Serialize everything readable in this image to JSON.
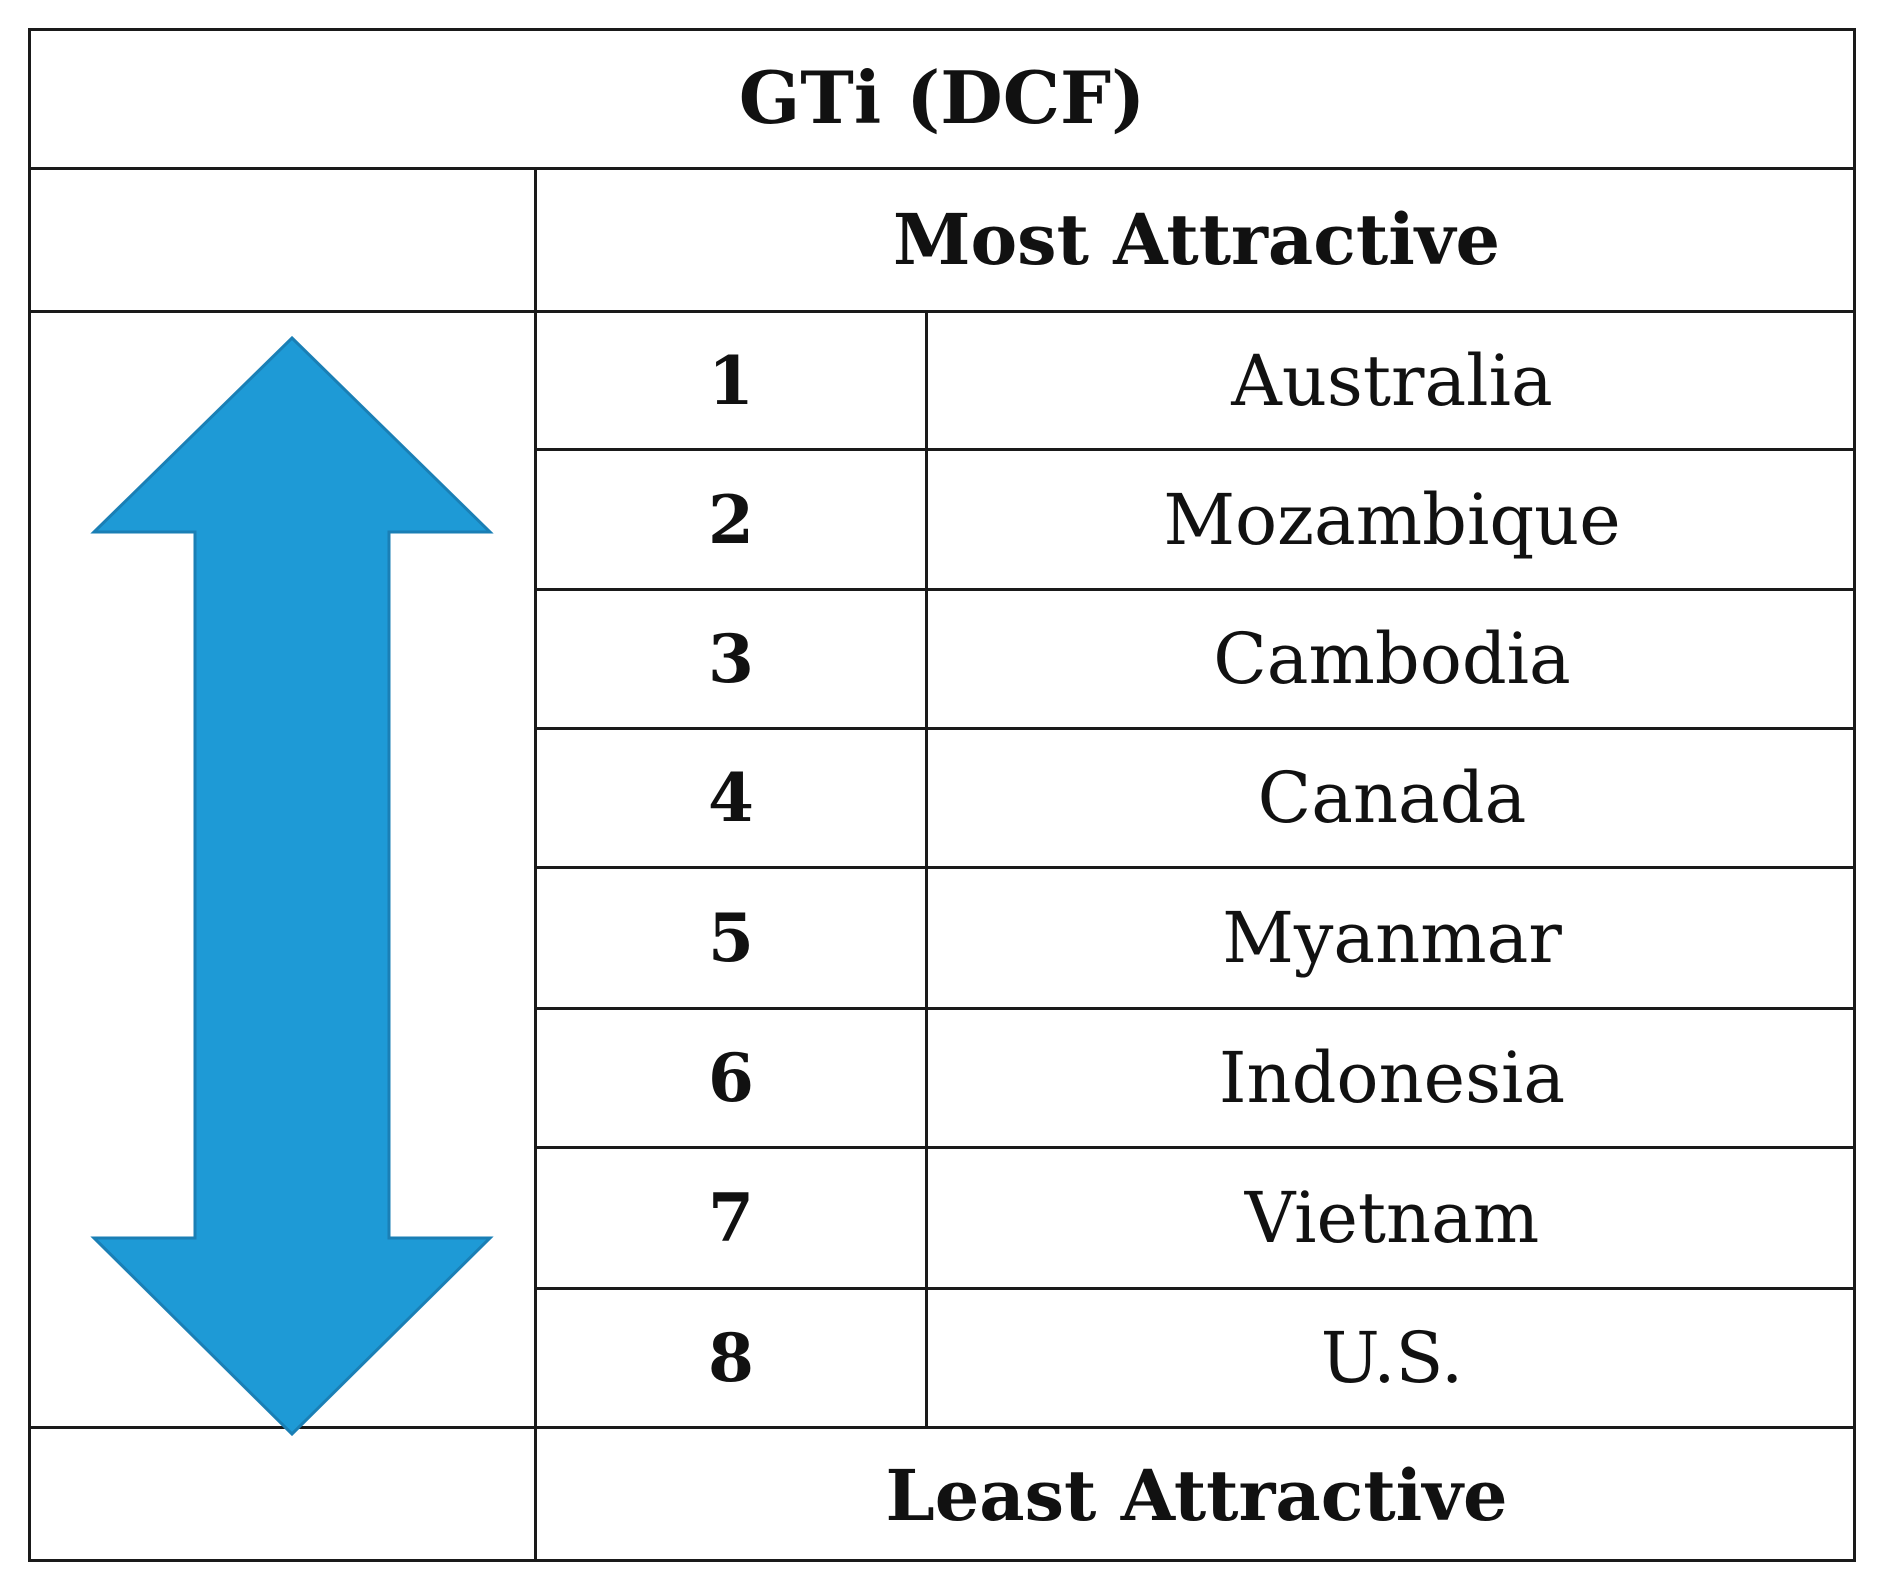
{
  "table": {
    "title": "GTi (DCF)",
    "top_label": "Most Attractive",
    "bottom_label": "Least Attractive",
    "rows": [
      {
        "rank": "1",
        "country": "Australia"
      },
      {
        "rank": "2",
        "country": "Mozambique"
      },
      {
        "rank": "3",
        "country": "Cambodia"
      },
      {
        "rank": "4",
        "country": "Canada"
      },
      {
        "rank": "5",
        "country": "Myanmar"
      },
      {
        "rank": "6",
        "country": "Indonesia"
      },
      {
        "rank": "7",
        "country": "Vietnam"
      },
      {
        "rank": "8",
        "country": "U.S."
      }
    ]
  },
  "arrow": {
    "icon": "double-headed-vertical-arrow-icon",
    "fill_color": "#1e9ad6",
    "stroke_color": "#1a7fb5"
  }
}
